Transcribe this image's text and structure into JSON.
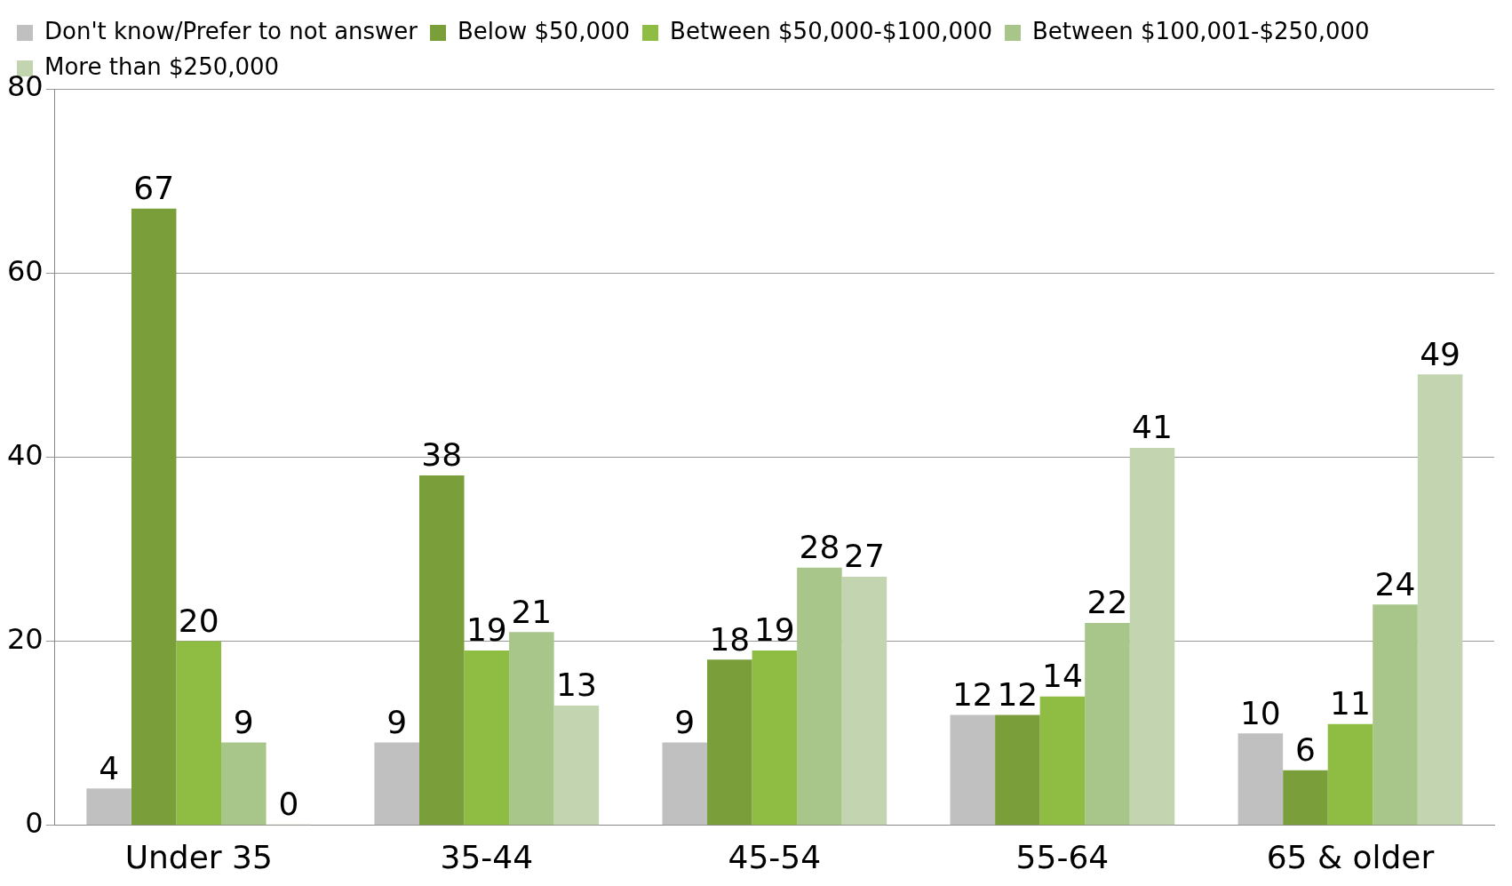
{
  "chart_data": {
    "type": "bar",
    "categories": [
      "Under 35",
      "35-44",
      "45-54",
      "55-64",
      "65 & older"
    ],
    "series": [
      {
        "name": "Don't know/Prefer to not answer",
        "color": "#c0c0c0",
        "values": [
          4,
          9,
          9,
          12,
          10
        ]
      },
      {
        "name": "Below $50,000",
        "color": "#7a9f3a",
        "values": [
          67,
          38,
          18,
          12,
          6
        ]
      },
      {
        "name": "Between $50,000-$100,000",
        "color": "#8fbc43",
        "values": [
          20,
          19,
          19,
          14,
          11
        ]
      },
      {
        "name": "Between $100,001-$250,000",
        "color": "#a9c68a",
        "values": [
          9,
          21,
          28,
          22,
          24
        ]
      },
      {
        "name": "More than $250,000",
        "color": "#c3d4b0",
        "values": [
          0,
          13,
          27,
          41,
          49
        ]
      }
    ],
    "ylim": [
      0,
      80
    ],
    "yticks": [
      0,
      20,
      40,
      60,
      80
    ],
    "grid": "y",
    "legend": "top",
    "data_labels": true
  }
}
